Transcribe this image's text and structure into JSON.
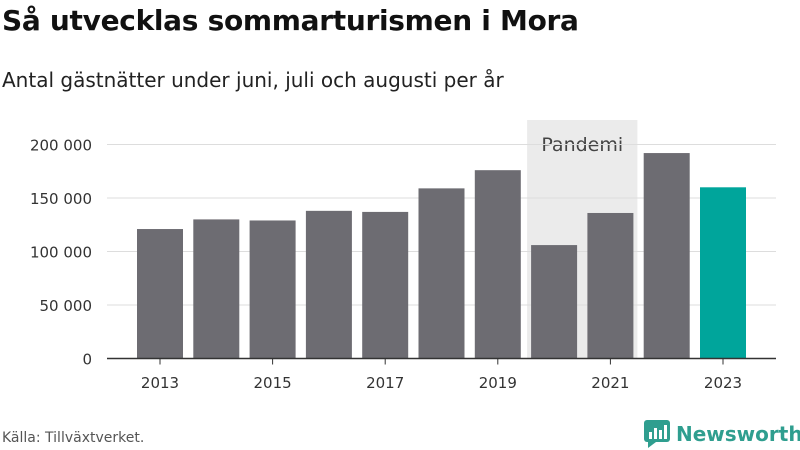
{
  "header": {
    "title": "Så utvecklas sommarturismen i Mora",
    "subtitle": "Antal gästnätter under juni, juli och augusti per år"
  },
  "footer": {
    "source": "Källa: Tillväxtverket.",
    "brand": "Newsworthy"
  },
  "colors": {
    "bar": "#6d6c72",
    "highlight": "#00a59b",
    "shade": "#ebebeb",
    "brand": "#2f9e8f"
  },
  "chart_data": {
    "type": "bar",
    "title": "Så utvecklas sommarturismen i Mora",
    "subtitle": "Antal gästnätter under juni, juli och augusti per år",
    "categories": [
      "2013",
      "2014",
      "2015",
      "2016",
      "2017",
      "2018",
      "2019",
      "2020",
      "2021",
      "2022",
      "2023"
    ],
    "values": [
      121000,
      130000,
      129000,
      138000,
      137000,
      159000,
      176000,
      106000,
      136000,
      192000,
      160000
    ],
    "highlight": "2023",
    "ylim": [
      0,
      200000
    ],
    "yticks": [
      0,
      50000,
      100000,
      150000,
      200000
    ],
    "ytick_labels": [
      "0",
      "50 000",
      "100 000",
      "150 000",
      "200 000"
    ],
    "xtick_labels": [
      "2013",
      "2015",
      "2017",
      "2019",
      "2021",
      "2023"
    ],
    "grid": true,
    "annotation": {
      "label": "Pandemi",
      "from": "2020",
      "to": "2021"
    }
  }
}
